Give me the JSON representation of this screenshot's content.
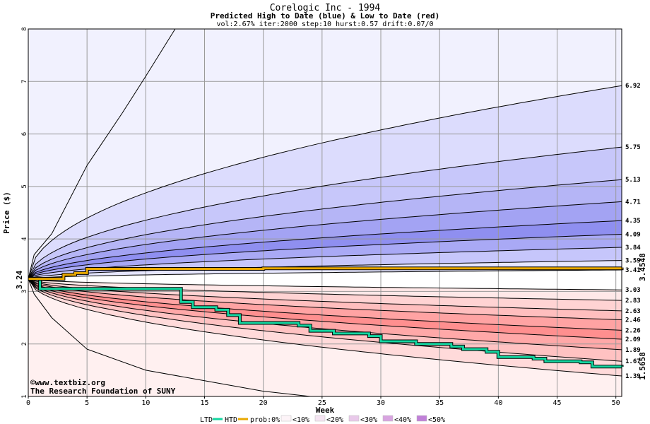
{
  "chart_data": {
    "type": "area",
    "title": "Corelogic Inc - 1994",
    "subtitle": "Predicted High to Date (blue) &  Low to Date (red)",
    "params": "vol:2.67% iter:2000 step:10 hurst:0.57 drift:0.07/0",
    "xlabel": "Week",
    "ylabel": "Price ($)",
    "xlim": [
      0,
      50.5
    ],
    "ylim": [
      1,
      8
    ],
    "x_ticks": [
      0,
      5,
      10,
      15,
      20,
      25,
      30,
      35,
      40,
      45,
      50
    ],
    "y_ticks": [
      1,
      2,
      3,
      4,
      5,
      6,
      7,
      8
    ],
    "grid": true,
    "start_price": 3.24,
    "start_label": "3.24",
    "high_final_label": "3.4548",
    "low_final_label": "1.5658",
    "right_labels": [
      "6.92",
      "5.75",
      "5.13",
      "4.71",
      "4.35",
      "4.09",
      "3.84",
      "3.59",
      "3.41",
      "3.03",
      "2.83",
      "2.63",
      "2.46",
      "2.26",
      "2.09",
      "1.89",
      "1.67",
      "1.39"
    ],
    "high_quantiles": [
      6.92,
      5.75,
      5.13,
      4.71,
      4.35,
      4.09,
      3.84,
      3.59,
      3.41
    ],
    "low_quantiles": [
      3.03,
      2.83,
      2.63,
      2.46,
      2.26,
      2.09,
      1.89,
      1.67,
      1.39
    ],
    "high_envelope_at": [
      [
        2,
        4.1
      ],
      [
        5,
        5.4
      ],
      [
        8,
        6.4
      ],
      [
        10,
        7.1
      ],
      [
        12.5,
        8.0
      ]
    ],
    "low_envelope_at": [
      [
        2,
        2.5
      ],
      [
        5,
        1.9
      ],
      [
        10,
        1.5
      ],
      [
        15,
        1.3
      ],
      [
        20,
        1.1
      ],
      [
        24,
        1.0
      ]
    ],
    "htd_path": [
      [
        0,
        3.24
      ],
      [
        2.5,
        3.24
      ],
      [
        3,
        3.32
      ],
      [
        4,
        3.35
      ],
      [
        5,
        3.43
      ],
      [
        20,
        3.44
      ],
      [
        50.5,
        3.4548
      ]
    ],
    "ltd_path": [
      [
        0,
        3.24
      ],
      [
        1,
        3.05
      ],
      [
        12.5,
        3.05
      ],
      [
        13,
        2.8
      ],
      [
        14,
        2.7
      ],
      [
        16,
        2.65
      ],
      [
        17,
        2.55
      ],
      [
        18,
        2.4
      ],
      [
        21,
        2.4
      ],
      [
        23,
        2.35
      ],
      [
        24,
        2.25
      ],
      [
        26,
        2.2
      ],
      [
        29,
        2.15
      ],
      [
        30,
        2.05
      ],
      [
        33,
        2.0
      ],
      [
        36,
        1.95
      ],
      [
        37,
        1.9
      ],
      [
        39,
        1.85
      ],
      [
        40,
        1.75
      ],
      [
        43,
        1.72
      ],
      [
        44,
        1.67
      ],
      [
        47,
        1.65
      ],
      [
        48,
        1.57
      ],
      [
        50.5,
        1.5658
      ]
    ],
    "colors": {
      "hi_bands": [
        "#f1f1fe",
        "#dcdcfd",
        "#c7c7fa",
        "#b5b5f6",
        "#a3a3f3",
        "#8f8ff0",
        "#a9a9f5",
        "#c6c6fb",
        "#e6e6ff"
      ],
      "lo_bands": [
        "#ffe8e8",
        "#ffd3d3",
        "#ffbebe",
        "#ffa3a3",
        "#ff8f8f",
        "#ffa8a8",
        "#ffc2c2",
        "#ffdada",
        "#fff0f0"
      ],
      "htd": "#e8a800",
      "ltd": "#14d6a0",
      "watermark": "#000080",
      "low_label": "#008060",
      "high_label": "#8b6a00"
    }
  },
  "watermark": {
    "line1": "©www.textbiz.org",
    "line2": "The Research Foundation of SUNY"
  },
  "legend": {
    "ltd": "LTD",
    "htd": "HTD",
    "prob": "prob:0%",
    "items": [
      "<10%",
      "<20%",
      "<30%",
      "<40%",
      "<50%"
    ],
    "colors": [
      "#fdf4f8",
      "#f5e4f2",
      "#e9c9ea",
      "#d8a4e0",
      "#c080d8"
    ]
  }
}
